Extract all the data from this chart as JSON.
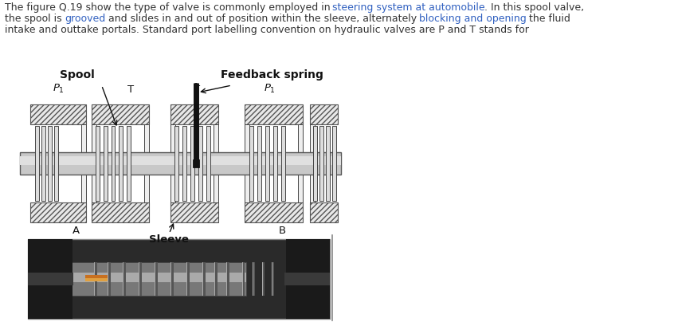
{
  "bg_color": "#ffffff",
  "text_color": "#333333",
  "text_color_blue": "#3060c0",
  "label_spool": "Spool",
  "label_feedback": "Feedback spring",
  "label_A": "A",
  "label_B": "B",
  "label_sleeve": "Sleeve",
  "hatch_color": "#555555",
  "hatch_bg": "#e8e8e8",
  "shaft_color": "#cccccc",
  "shaft_edge": "#555555",
  "land_color": "#dddddd",
  "land_edge": "#444444",
  "wall_color": "#eeeeee",
  "wall_edge": "#444444",
  "spring_color": "#111111"
}
